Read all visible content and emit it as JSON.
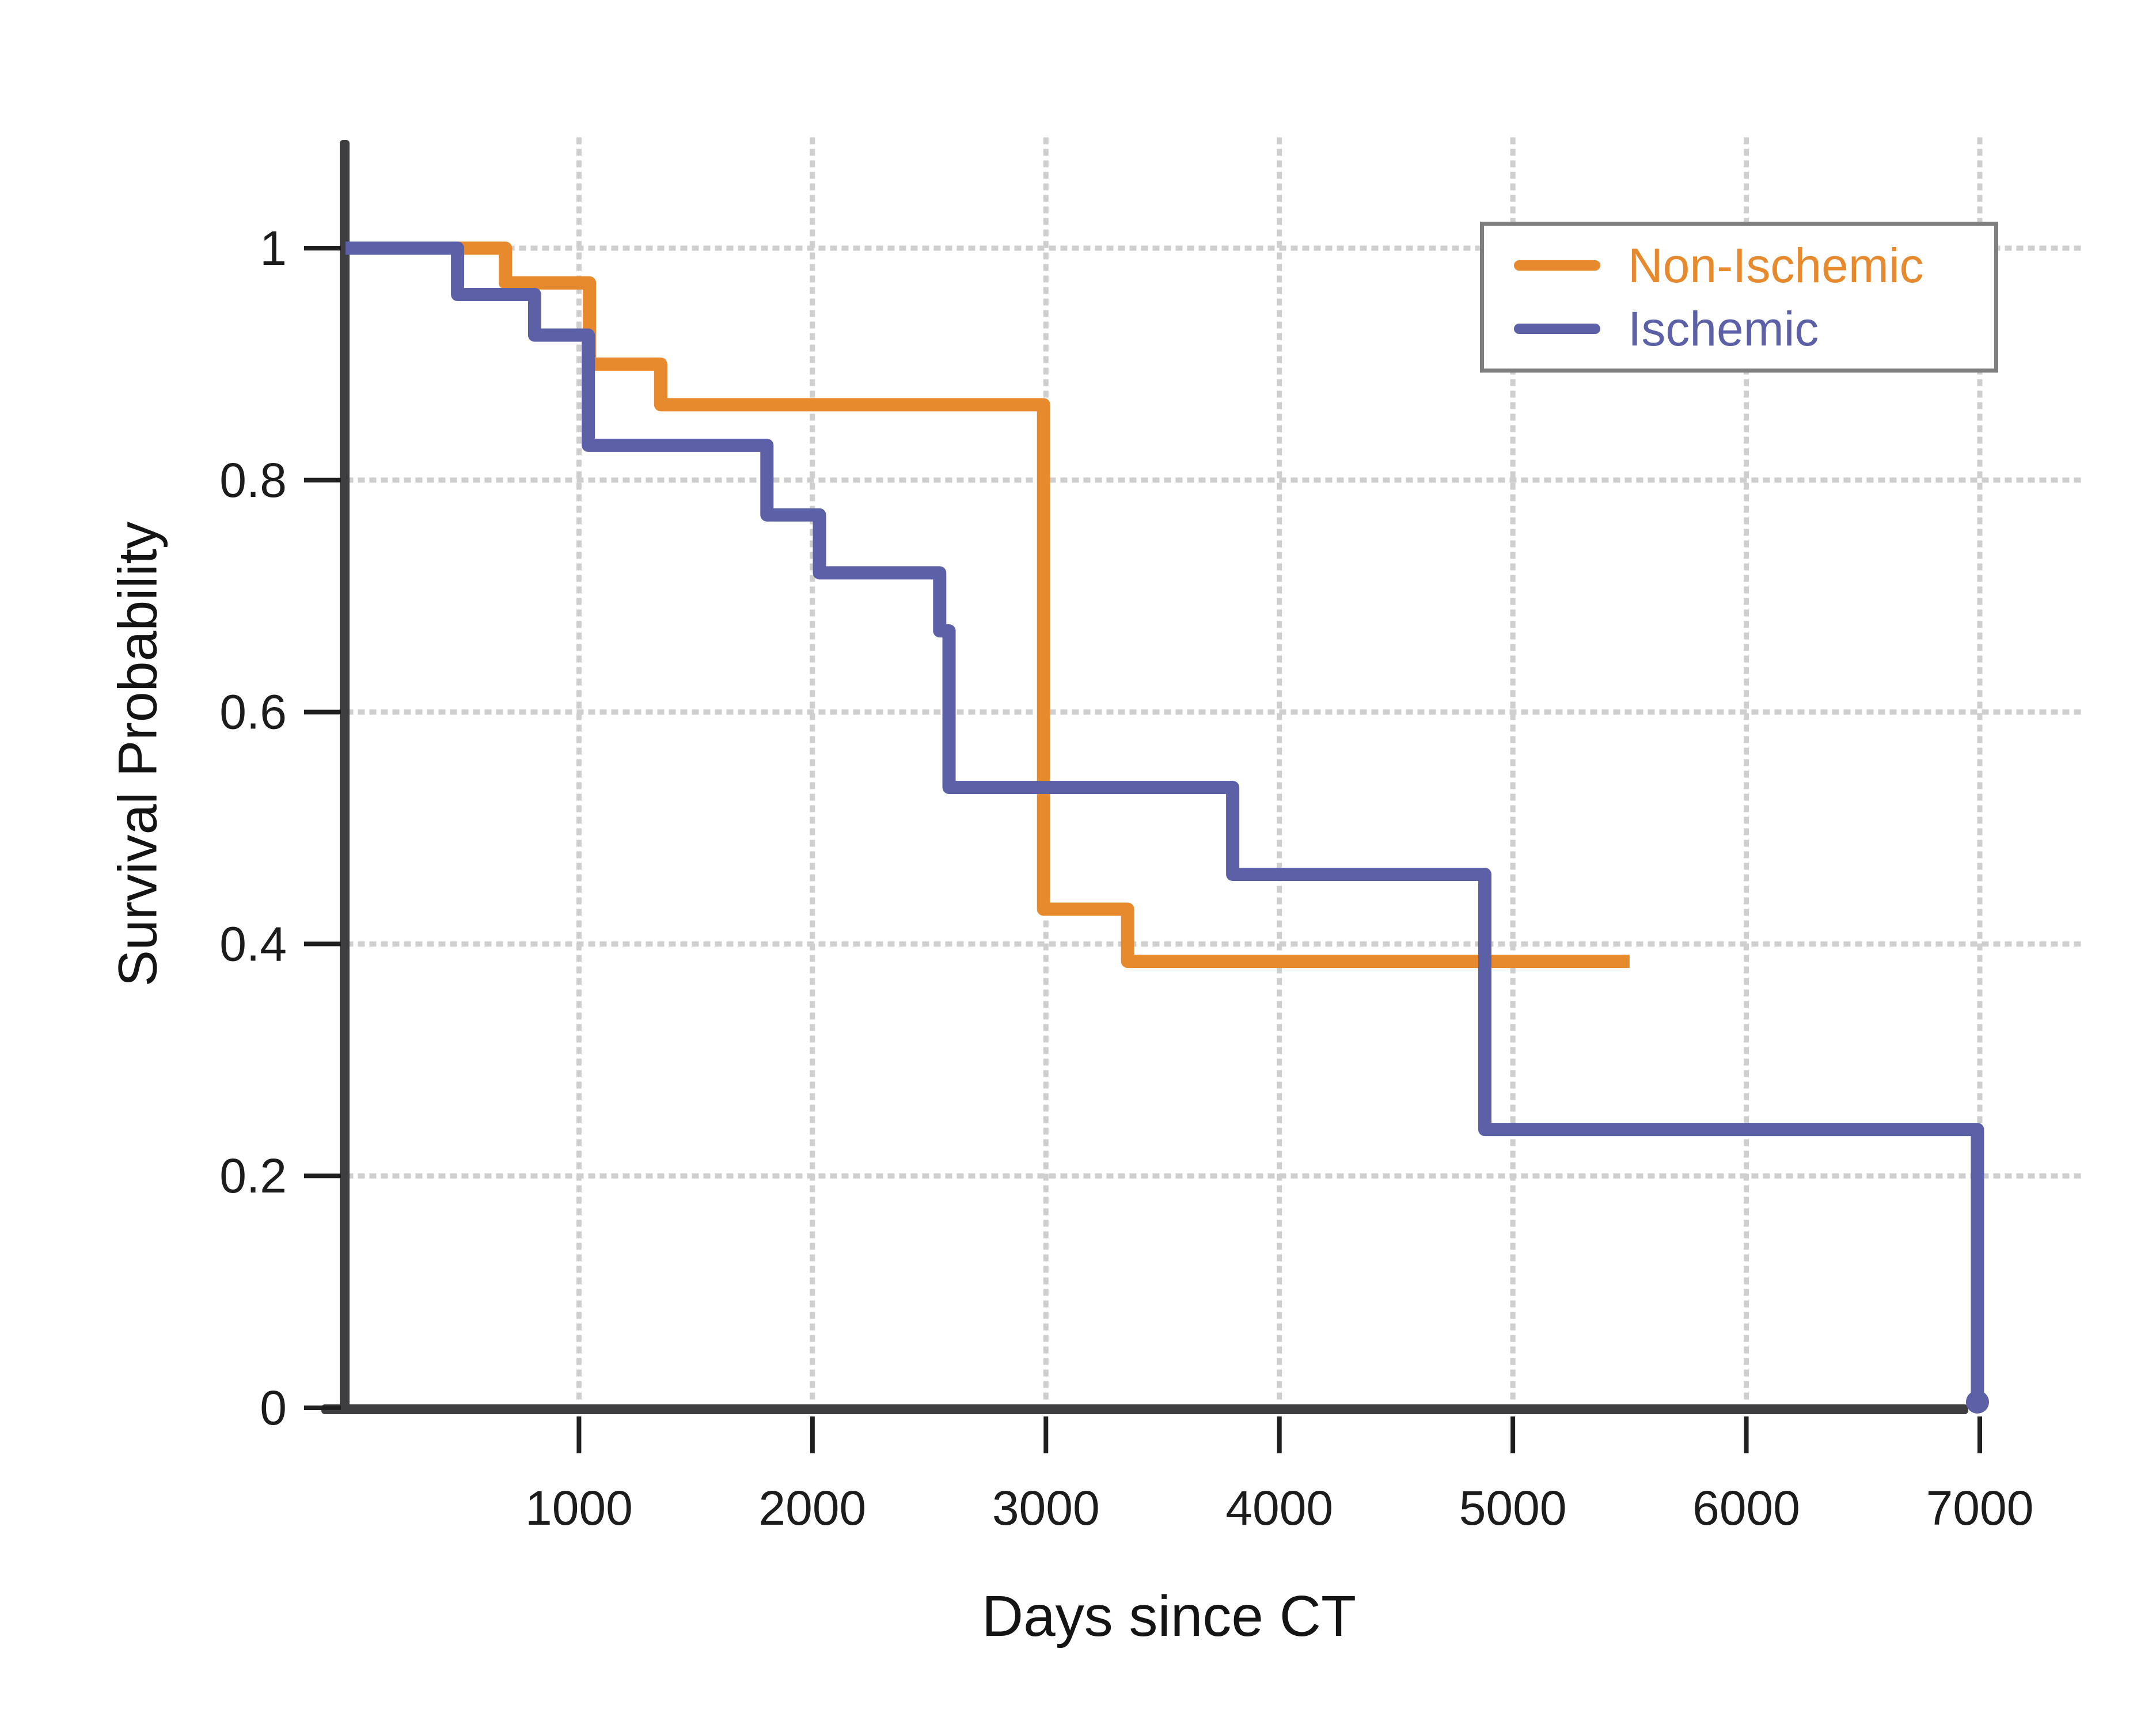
{
  "chart_data": {
    "type": "line",
    "subtype": "kaplan-meier-step",
    "title": "",
    "xlabel": "Days since CT",
    "ylabel": "Survival Probability",
    "xlim": [
      0,
      7050
    ],
    "ylim": [
      0,
      1.05
    ],
    "x_ticks": [
      1000,
      2000,
      3000,
      4000,
      5000,
      6000,
      7000
    ],
    "x_tick_labels": [
      "1000",
      "2000",
      "3000",
      "4000",
      "5000",
      "6000",
      "7000"
    ],
    "y_ticks": [
      0,
      0.2,
      0.4,
      0.6,
      0.8,
      1
    ],
    "y_tick_labels": [
      "0",
      "0.2",
      "0.4",
      "0.6",
      "0.8",
      "1"
    ],
    "grid": "dotted, horizontal at 0.2/0.4/0.6/0.8/1.0 and vertical at each 1000 days",
    "legend_position": "upper right",
    "series": [
      {
        "name": "Non-Ischemic",
        "color": "#E78A2E",
        "steps": [
          [
            0,
            1.0
          ],
          [
            685,
            0.97
          ],
          [
            1045,
            0.9
          ],
          [
            1350,
            0.865
          ],
          [
            2990,
            0.43
          ],
          [
            3350,
            0.385
          ]
        ],
        "end_x": 5500,
        "end_marker": "none"
      },
      {
        "name": "Ischemic",
        "color": "#5C60A6",
        "steps": [
          [
            0,
            1.0
          ],
          [
            480,
            0.96
          ],
          [
            810,
            0.925
          ],
          [
            1040,
            0.83
          ],
          [
            1805,
            0.77
          ],
          [
            2030,
            0.72
          ],
          [
            2545,
            0.67
          ],
          [
            2585,
            0.535
          ],
          [
            3800,
            0.46
          ],
          [
            4880,
            0.24
          ],
          [
            6990,
            0.005
          ]
        ],
        "end_x": 7000,
        "end_marker": "dot"
      }
    ],
    "style": {
      "axis_color": "#3E3E40",
      "tick_color": "#1F1F1F",
      "tick_label_color": "#1C1C1C",
      "grid_color": "#CFCFCF",
      "legend_border_color": "#7E7E7E",
      "background_color": "#FFFFFF"
    }
  }
}
